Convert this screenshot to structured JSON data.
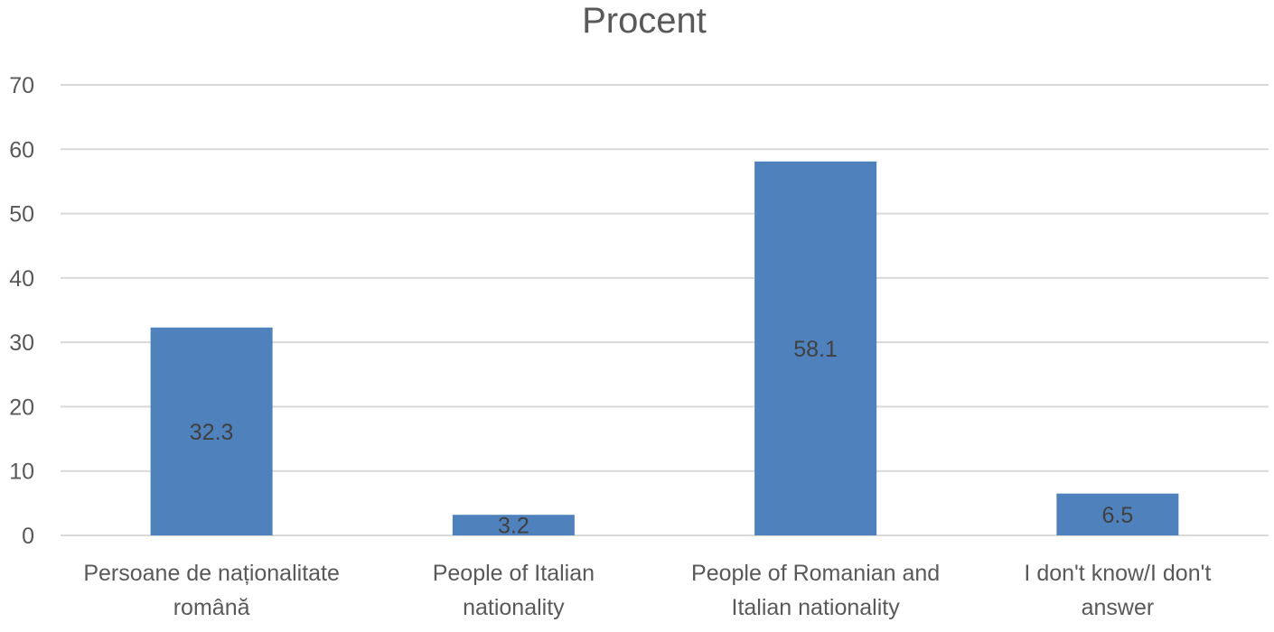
{
  "chart_data": {
    "type": "bar",
    "title": "Procent",
    "xlabel": "",
    "ylabel": "",
    "categories": [
      "Persoane de naționalitate română",
      "People of Italian nationality",
      "People of Romanian and Italian nationality",
      "I don't know/I don't answer"
    ],
    "series": [
      {
        "values": [
          32.3,
          3.2,
          58.1,
          6.5
        ],
        "color": "#4f81bd"
      }
    ],
    "data_labels": [
      "32.3",
      "3.2",
      "58.1",
      "6.5"
    ],
    "ylim": [
      0,
      70
    ],
    "yticks": [
      "0",
      "10",
      "20",
      "30",
      "40",
      "50",
      "60",
      "70"
    ],
    "grid": true,
    "legend": "none"
  }
}
